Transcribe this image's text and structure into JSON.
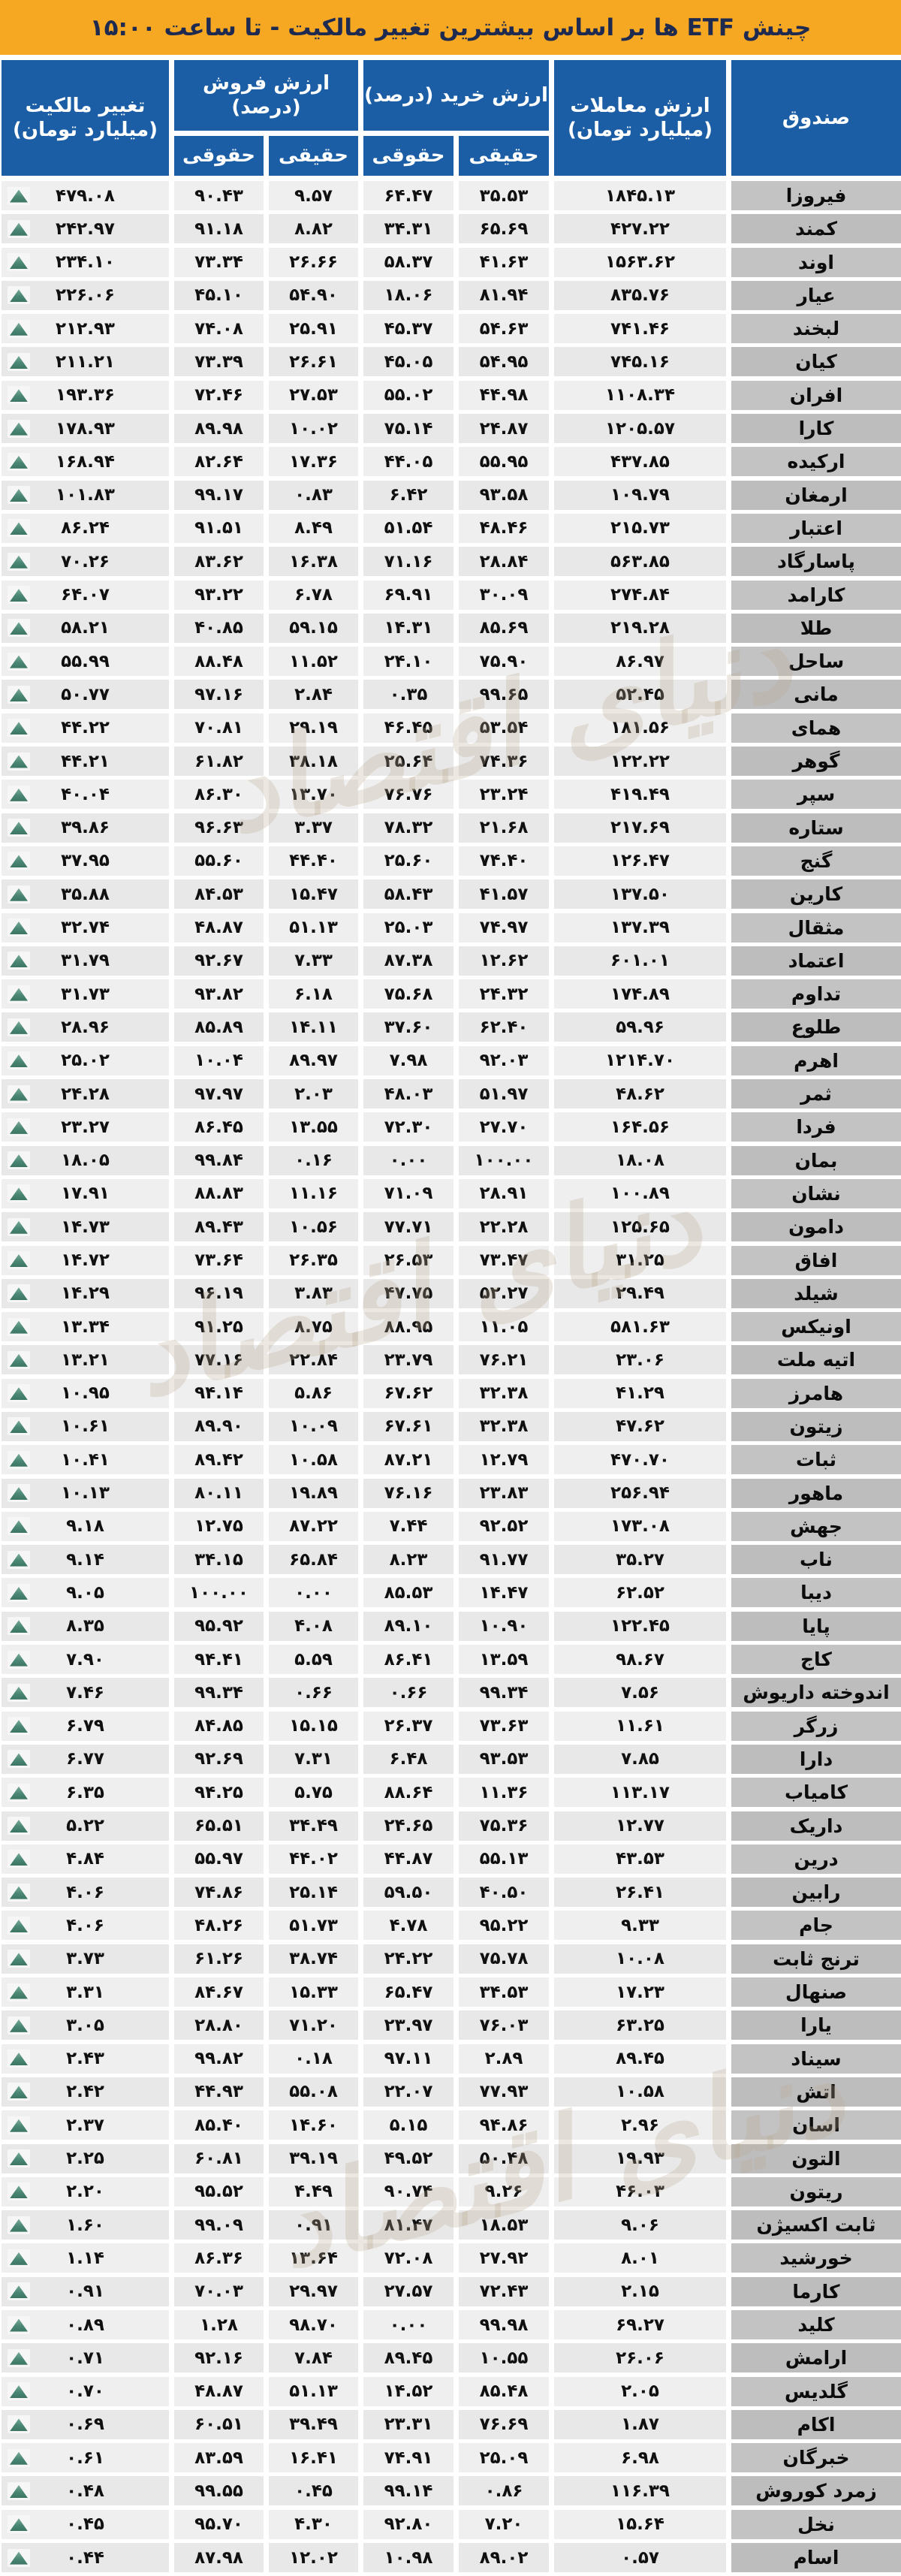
{
  "header": {
    "title": "چینش ETF ها بر اساس بیشترین تغییر مالکیت - تا ساعت ۱۵:۰۰"
  },
  "colors": {
    "title_bar": "#F7A823",
    "header_blue": "#1B5EA6",
    "fund_cell_gray": "#C3C3C3",
    "num_cell_gray": "#EFEFEF",
    "up_triangle_green": "#4A8674"
  },
  "watermark": {
    "text": "دنیای اقتصاد"
  },
  "columns": {
    "fund": "صندوق",
    "trades_line1": "ارزش معاملات",
    "trades_line2": "(میلیارد تومان)",
    "buy_group": "ارزش خرید (درصد)",
    "sell_group_line1": "ارزش فروش",
    "sell_group_line2": "(درصد)",
    "change_line1": "تغییر مالکیت",
    "change_line2": "(میلیارد تومان)",
    "real": "حقیقی",
    "legal": "حقوقی"
  },
  "rows": [
    {
      "name": "فیروزا",
      "trades": "۱۸۴۵.۱۳",
      "buy_real": "۳۵.۵۳",
      "buy_legal": "۶۴.۴۷",
      "sell_real": "۹.۵۷",
      "sell_legal": "۹۰.۴۳",
      "change": "۴۷۹.۰۸"
    },
    {
      "name": "کمند",
      "trades": "۴۲۷.۲۲",
      "buy_real": "۶۵.۶۹",
      "buy_legal": "۳۴.۳۱",
      "sell_real": "۸.۸۲",
      "sell_legal": "۹۱.۱۸",
      "change": "۲۴۲.۹۷"
    },
    {
      "name": "اوند",
      "trades": "۱۵۶۳.۶۲",
      "buy_real": "۴۱.۶۳",
      "buy_legal": "۵۸.۳۷",
      "sell_real": "۲۶.۶۶",
      "sell_legal": "۷۳.۳۴",
      "change": "۲۳۴.۱۰"
    },
    {
      "name": "عیار",
      "trades": "۸۳۵.۷۶",
      "buy_real": "۸۱.۹۴",
      "buy_legal": "۱۸.۰۶",
      "sell_real": "۵۴.۹۰",
      "sell_legal": "۴۵.۱۰",
      "change": "۲۲۶.۰۶"
    },
    {
      "name": "لبخند",
      "trades": "۷۴۱.۴۶",
      "buy_real": "۵۴.۶۳",
      "buy_legal": "۴۵.۳۷",
      "sell_real": "۲۵.۹۱",
      "sell_legal": "۷۴.۰۸",
      "change": "۲۱۲.۹۳"
    },
    {
      "name": "کیان",
      "trades": "۷۴۵.۱۶",
      "buy_real": "۵۴.۹۵",
      "buy_legal": "۴۵.۰۵",
      "sell_real": "۲۶.۶۱",
      "sell_legal": "۷۳.۳۹",
      "change": "۲۱۱.۲۱"
    },
    {
      "name": "افران",
      "trades": "۱۱۰۸.۳۴",
      "buy_real": "۴۴.۹۸",
      "buy_legal": "۵۵.۰۲",
      "sell_real": "۲۷.۵۳",
      "sell_legal": "۷۲.۴۶",
      "change": "۱۹۳.۳۶"
    },
    {
      "name": "کارا",
      "trades": "۱۲۰۵.۵۷",
      "buy_real": "۲۴.۸۷",
      "buy_legal": "۷۵.۱۴",
      "sell_real": "۱۰.۰۲",
      "sell_legal": "۸۹.۹۸",
      "change": "۱۷۸.۹۳"
    },
    {
      "name": "ارکیده",
      "trades": "۴۳۷.۸۵",
      "buy_real": "۵۵.۹۵",
      "buy_legal": "۴۴.۰۵",
      "sell_real": "۱۷.۳۶",
      "sell_legal": "۸۲.۶۴",
      "change": "۱۶۸.۹۴"
    },
    {
      "name": "ارمغان",
      "trades": "۱۰۹.۷۹",
      "buy_real": "۹۳.۵۸",
      "buy_legal": "۶.۴۲",
      "sell_real": "۰.۸۳",
      "sell_legal": "۹۹.۱۷",
      "change": "۱۰۱.۸۳"
    },
    {
      "name": "اعتبار",
      "trades": "۲۱۵.۷۳",
      "buy_real": "۴۸.۴۶",
      "buy_legal": "۵۱.۵۴",
      "sell_real": "۸.۴۹",
      "sell_legal": "۹۱.۵۱",
      "change": "۸۶.۲۴"
    },
    {
      "name": "پاسارگاد",
      "trades": "۵۶۳.۸۵",
      "buy_real": "۲۸.۸۴",
      "buy_legal": "۷۱.۱۶",
      "sell_real": "۱۶.۳۸",
      "sell_legal": "۸۳.۶۲",
      "change": "۷۰.۲۶"
    },
    {
      "name": "کارامد",
      "trades": "۲۷۴.۸۴",
      "buy_real": "۳۰.۰۹",
      "buy_legal": "۶۹.۹۱",
      "sell_real": "۶.۷۸",
      "sell_legal": "۹۳.۲۲",
      "change": "۶۴.۰۷"
    },
    {
      "name": "طلا",
      "trades": "۲۱۹.۲۸",
      "buy_real": "۸۵.۶۹",
      "buy_legal": "۱۴.۳۱",
      "sell_real": "۵۹.۱۵",
      "sell_legal": "۴۰.۸۵",
      "change": "۵۸.۲۱"
    },
    {
      "name": "ساحل",
      "trades": "۸۶.۹۷",
      "buy_real": "۷۵.۹۰",
      "buy_legal": "۲۴.۱۰",
      "sell_real": "۱۱.۵۲",
      "sell_legal": "۸۸.۴۸",
      "change": "۵۵.۹۹"
    },
    {
      "name": "مانی",
      "trades": "۵۲.۴۵",
      "buy_real": "۹۹.۶۵",
      "buy_legal": "۰.۳۵",
      "sell_real": "۲.۸۴",
      "sell_legal": "۹۷.۱۶",
      "change": "۵۰.۷۷"
    },
    {
      "name": "همای",
      "trades": "۱۸۱.۵۶",
      "buy_real": "۵۳.۵۴",
      "buy_legal": "۴۶.۴۵",
      "sell_real": "۲۹.۱۹",
      "sell_legal": "۷۰.۸۱",
      "change": "۴۴.۲۲"
    },
    {
      "name": "گوهر",
      "trades": "۱۲۲.۲۲",
      "buy_real": "۷۴.۳۶",
      "buy_legal": "۲۵.۶۴",
      "sell_real": "۳۸.۱۸",
      "sell_legal": "۶۱.۸۲",
      "change": "۴۴.۲۱"
    },
    {
      "name": "سپر",
      "trades": "۴۱۹.۴۹",
      "buy_real": "۲۳.۲۴",
      "buy_legal": "۷۶.۷۶",
      "sell_real": "۱۳.۷۰",
      "sell_legal": "۸۶.۳۰",
      "change": "۴۰.۰۴"
    },
    {
      "name": "ستاره",
      "trades": "۲۱۷.۶۹",
      "buy_real": "۲۱.۶۸",
      "buy_legal": "۷۸.۳۲",
      "sell_real": "۳.۳۷",
      "sell_legal": "۹۶.۶۳",
      "change": "۳۹.۸۶"
    },
    {
      "name": "گنج",
      "trades": "۱۲۶.۴۷",
      "buy_real": "۷۴.۴۰",
      "buy_legal": "۲۵.۶۰",
      "sell_real": "۴۴.۴۰",
      "sell_legal": "۵۵.۶۰",
      "change": "۳۷.۹۵"
    },
    {
      "name": "کارین",
      "trades": "۱۳۷.۵۰",
      "buy_real": "۴۱.۵۷",
      "buy_legal": "۵۸.۴۳",
      "sell_real": "۱۵.۴۷",
      "sell_legal": "۸۴.۵۳",
      "change": "۳۵.۸۸"
    },
    {
      "name": "مثقال",
      "trades": "۱۳۷.۳۹",
      "buy_real": "۷۴.۹۷",
      "buy_legal": "۲۵.۰۳",
      "sell_real": "۵۱.۱۳",
      "sell_legal": "۴۸.۸۷",
      "change": "۳۲.۷۴"
    },
    {
      "name": "اعتماد",
      "trades": "۶۰۱.۰۱",
      "buy_real": "۱۲.۶۲",
      "buy_legal": "۸۷.۳۸",
      "sell_real": "۷.۳۳",
      "sell_legal": "۹۲.۶۷",
      "change": "۳۱.۷۹"
    },
    {
      "name": "تداوم",
      "trades": "۱۷۴.۸۹",
      "buy_real": "۲۴.۳۲",
      "buy_legal": "۷۵.۶۸",
      "sell_real": "۶.۱۸",
      "sell_legal": "۹۳.۸۲",
      "change": "۳۱.۷۳"
    },
    {
      "name": "طلوع",
      "trades": "۵۹.۹۶",
      "buy_real": "۶۲.۴۰",
      "buy_legal": "۳۷.۶۰",
      "sell_real": "۱۴.۱۱",
      "sell_legal": "۸۵.۸۹",
      "change": "۲۸.۹۶"
    },
    {
      "name": "اهرم",
      "trades": "۱۲۱۴.۷۰",
      "buy_real": "۹۲.۰۳",
      "buy_legal": "۷.۹۸",
      "sell_real": "۸۹.۹۷",
      "sell_legal": "۱۰.۰۴",
      "change": "۲۵.۰۲"
    },
    {
      "name": "ثمر",
      "trades": "۴۸.۶۲",
      "buy_real": "۵۱.۹۷",
      "buy_legal": "۴۸.۰۳",
      "sell_real": "۲.۰۳",
      "sell_legal": "۹۷.۹۷",
      "change": "۲۴.۲۸"
    },
    {
      "name": "فردا",
      "trades": "۱۶۴.۵۶",
      "buy_real": "۲۷.۷۰",
      "buy_legal": "۷۲.۳۰",
      "sell_real": "۱۳.۵۵",
      "sell_legal": "۸۶.۴۵",
      "change": "۲۳.۲۷"
    },
    {
      "name": "بمان",
      "trades": "۱۸.۰۸",
      "buy_real": "۱۰۰.۰۰",
      "buy_legal": "۰.۰۰",
      "sell_real": "۰.۱۶",
      "sell_legal": "۹۹.۸۴",
      "change": "۱۸.۰۵"
    },
    {
      "name": "نشان",
      "trades": "۱۰۰.۸۹",
      "buy_real": "۲۸.۹۱",
      "buy_legal": "۷۱.۰۹",
      "sell_real": "۱۱.۱۶",
      "sell_legal": "۸۸.۸۳",
      "change": "۱۷.۹۱"
    },
    {
      "name": "دامون",
      "trades": "۱۲۵.۶۵",
      "buy_real": "۲۲.۲۸",
      "buy_legal": "۷۷.۷۱",
      "sell_real": "۱۰.۵۶",
      "sell_legal": "۸۹.۴۳",
      "change": "۱۴.۷۳"
    },
    {
      "name": "افاق",
      "trades": "۳۱.۲۵",
      "buy_real": "۷۳.۴۷",
      "buy_legal": "۲۶.۵۳",
      "sell_real": "۲۶.۳۵",
      "sell_legal": "۷۳.۶۴",
      "change": "۱۴.۷۲"
    },
    {
      "name": "شیلد",
      "trades": "۲۹.۴۹",
      "buy_real": "۵۲.۲۷",
      "buy_legal": "۴۷.۷۵",
      "sell_real": "۳.۸۳",
      "sell_legal": "۹۶.۱۹",
      "change": "۱۴.۲۹"
    },
    {
      "name": "اونیکس",
      "trades": "۵۸۱.۶۳",
      "buy_real": "۱۱.۰۵",
      "buy_legal": "۸۸.۹۵",
      "sell_real": "۸.۷۵",
      "sell_legal": "۹۱.۲۵",
      "change": "۱۳.۳۴"
    },
    {
      "name": "اتیه ملت",
      "trades": "۲۳.۰۶",
      "buy_real": "۷۶.۲۱",
      "buy_legal": "۲۳.۷۹",
      "sell_real": "۲۲.۸۴",
      "sell_legal": "۷۷.۱۶",
      "change": "۱۳.۲۱"
    },
    {
      "name": "هامرز",
      "trades": "۴۱.۲۹",
      "buy_real": "۳۲.۳۸",
      "buy_legal": "۶۷.۶۲",
      "sell_real": "۵.۸۶",
      "sell_legal": "۹۴.۱۴",
      "change": "۱۰.۹۵"
    },
    {
      "name": "زیتون",
      "trades": "۴۷.۶۲",
      "buy_real": "۳۲.۳۸",
      "buy_legal": "۶۷.۶۱",
      "sell_real": "۱۰.۰۹",
      "sell_legal": "۸۹.۹۰",
      "change": "۱۰.۶۱"
    },
    {
      "name": "ثبات",
      "trades": "۴۷۰.۷۰",
      "buy_real": "۱۲.۷۹",
      "buy_legal": "۸۷.۲۱",
      "sell_real": "۱۰.۵۸",
      "sell_legal": "۸۹.۴۲",
      "change": "۱۰.۴۱"
    },
    {
      "name": "ماهور",
      "trades": "۲۵۶.۹۴",
      "buy_real": "۲۳.۸۳",
      "buy_legal": "۷۶.۱۶",
      "sell_real": "۱۹.۸۹",
      "sell_legal": "۸۰.۱۱",
      "change": "۱۰.۱۳"
    },
    {
      "name": "جهش",
      "trades": "۱۷۳.۰۸",
      "buy_real": "۹۲.۵۲",
      "buy_legal": "۷.۴۴",
      "sell_real": "۸۷.۲۲",
      "sell_legal": "۱۲.۷۵",
      "change": "۹.۱۸"
    },
    {
      "name": "ناب",
      "trades": "۳۵.۲۷",
      "buy_real": "۹۱.۷۷",
      "buy_legal": "۸.۲۳",
      "sell_real": "۶۵.۸۴",
      "sell_legal": "۳۴.۱۵",
      "change": "۹.۱۴"
    },
    {
      "name": "دیبا",
      "trades": "۶۲.۵۲",
      "buy_real": "۱۴.۴۷",
      "buy_legal": "۸۵.۵۳",
      "sell_real": "۰.۰۰",
      "sell_legal": "۱۰۰.۰۰",
      "change": "۹.۰۵"
    },
    {
      "name": "پایا",
      "trades": "۱۲۲.۴۵",
      "buy_real": "۱۰.۹۰",
      "buy_legal": "۸۹.۱۰",
      "sell_real": "۴.۰۸",
      "sell_legal": "۹۵.۹۲",
      "change": "۸.۳۵"
    },
    {
      "name": "کاج",
      "trades": "۹۸.۶۷",
      "buy_real": "۱۳.۵۹",
      "buy_legal": "۸۶.۴۱",
      "sell_real": "۵.۵۹",
      "sell_legal": "۹۴.۴۱",
      "change": "۷.۹۰"
    },
    {
      "name": "اندوخته داریوش",
      "trades": "۷.۵۶",
      "buy_real": "۹۹.۳۴",
      "buy_legal": "۰.۶۶",
      "sell_real": "۰.۶۶",
      "sell_legal": "۹۹.۳۴",
      "change": "۷.۴۶"
    },
    {
      "name": "زرگر",
      "trades": "۱۱.۶۱",
      "buy_real": "۷۳.۶۳",
      "buy_legal": "۲۶.۳۷",
      "sell_real": "۱۵.۱۵",
      "sell_legal": "۸۴.۸۵",
      "change": "۶.۷۹"
    },
    {
      "name": "دارا",
      "trades": "۷.۸۵",
      "buy_real": "۹۳.۵۳",
      "buy_legal": "۶.۴۸",
      "sell_real": "۷.۳۱",
      "sell_legal": "۹۲.۶۹",
      "change": "۶.۷۷"
    },
    {
      "name": "کامیاب",
      "trades": "۱۱۳.۱۷",
      "buy_real": "۱۱.۳۶",
      "buy_legal": "۸۸.۶۴",
      "sell_real": "۵.۷۵",
      "sell_legal": "۹۴.۲۵",
      "change": "۶.۳۵"
    },
    {
      "name": "داریک",
      "trades": "۱۲.۷۷",
      "buy_real": "۷۵.۳۶",
      "buy_legal": "۲۴.۶۵",
      "sell_real": "۳۴.۴۹",
      "sell_legal": "۶۵.۵۱",
      "change": "۵.۲۲"
    },
    {
      "name": "درین",
      "trades": "۴۳.۵۳",
      "buy_real": "۵۵.۱۳",
      "buy_legal": "۴۴.۸۷",
      "sell_real": "۴۴.۰۲",
      "sell_legal": "۵۵.۹۷",
      "change": "۴.۸۴"
    },
    {
      "name": "رابین",
      "trades": "۲۶.۴۱",
      "buy_real": "۴۰.۵۰",
      "buy_legal": "۵۹.۵۰",
      "sell_real": "۲۵.۱۴",
      "sell_legal": "۷۴.۸۶",
      "change": "۴.۰۶"
    },
    {
      "name": "جام",
      "trades": "۹.۳۳",
      "buy_real": "۹۵.۲۲",
      "buy_legal": "۴.۷۸",
      "sell_real": "۵۱.۷۳",
      "sell_legal": "۴۸.۲۶",
      "change": "۴.۰۶"
    },
    {
      "name": "ترنج ثابت",
      "trades": "۱۰.۰۸",
      "buy_real": "۷۵.۷۸",
      "buy_legal": "۲۴.۲۲",
      "sell_real": "۳۸.۷۴",
      "sell_legal": "۶۱.۲۶",
      "change": "۳.۷۳"
    },
    {
      "name": "صنهال",
      "trades": "۱۷.۲۳",
      "buy_real": "۳۴.۵۳",
      "buy_legal": "۶۵.۴۷",
      "sell_real": "۱۵.۳۳",
      "sell_legal": "۸۴.۶۷",
      "change": "۳.۳۱"
    },
    {
      "name": "یارا",
      "trades": "۶۳.۲۵",
      "buy_real": "۷۶.۰۳",
      "buy_legal": "۲۳.۹۷",
      "sell_real": "۷۱.۲۰",
      "sell_legal": "۲۸.۸۰",
      "change": "۳.۰۵"
    },
    {
      "name": "سیناد",
      "trades": "۸۹.۴۵",
      "buy_real": "۲.۸۹",
      "buy_legal": "۹۷.۱۱",
      "sell_real": "۰.۱۸",
      "sell_legal": "۹۹.۸۲",
      "change": "۲.۴۳"
    },
    {
      "name": "اتش",
      "trades": "۱۰.۵۸",
      "buy_real": "۷۷.۹۳",
      "buy_legal": "۲۲.۰۷",
      "sell_real": "۵۵.۰۸",
      "sell_legal": "۴۴.۹۳",
      "change": "۲.۴۲"
    },
    {
      "name": "اسان",
      "trades": "۲.۹۶",
      "buy_real": "۹۴.۸۶",
      "buy_legal": "۵.۱۵",
      "sell_real": "۱۴.۶۰",
      "sell_legal": "۸۵.۴۰",
      "change": "۲.۳۷"
    },
    {
      "name": "التون",
      "trades": "۱۹.۹۳",
      "buy_real": "۵۰.۴۸",
      "buy_legal": "۴۹.۵۲",
      "sell_real": "۳۹.۱۹",
      "sell_legal": "۶۰.۸۱",
      "change": "۲.۲۵"
    },
    {
      "name": "ریتون",
      "trades": "۴۶.۰۳",
      "buy_real": "۹.۲۶",
      "buy_legal": "۹۰.۷۴",
      "sell_real": "۴.۴۹",
      "sell_legal": "۹۵.۵۲",
      "change": "۲.۲۰"
    },
    {
      "name": "ثابت اکسیژن",
      "trades": "۹.۰۶",
      "buy_real": "۱۸.۵۳",
      "buy_legal": "۸۱.۴۷",
      "sell_real": "۰.۹۱",
      "sell_legal": "۹۹.۰۹",
      "change": "۱.۶۰"
    },
    {
      "name": "خورشید",
      "trades": "۸.۰۱",
      "buy_real": "۲۷.۹۲",
      "buy_legal": "۷۲.۰۸",
      "sell_real": "۱۳.۶۴",
      "sell_legal": "۸۶.۳۶",
      "change": "۱.۱۴"
    },
    {
      "name": "کارما",
      "trades": "۲.۱۵",
      "buy_real": "۷۲.۴۳",
      "buy_legal": "۲۷.۵۷",
      "sell_real": "۲۹.۹۷",
      "sell_legal": "۷۰.۰۳",
      "change": "۰.۹۱"
    },
    {
      "name": "کلید",
      "trades": "۶۹.۲۷",
      "buy_real": "۹۹.۹۸",
      "buy_legal": "۰.۰۰",
      "sell_real": "۹۸.۷۰",
      "sell_legal": "۱.۲۸",
      "change": "۰.۸۹"
    },
    {
      "name": "ارامش",
      "trades": "۲۶.۰۶",
      "buy_real": "۱۰.۵۵",
      "buy_legal": "۸۹.۴۵",
      "sell_real": "۷.۸۴",
      "sell_legal": "۹۲.۱۶",
      "change": "۰.۷۱"
    },
    {
      "name": "گلدیس",
      "trades": "۲.۰۵",
      "buy_real": "۸۵.۴۸",
      "buy_legal": "۱۴.۵۲",
      "sell_real": "۵۱.۱۳",
      "sell_legal": "۴۸.۸۷",
      "change": "۰.۷۰"
    },
    {
      "name": "اکام",
      "trades": "۱.۸۷",
      "buy_real": "۷۶.۶۹",
      "buy_legal": "۲۳.۳۱",
      "sell_real": "۳۹.۴۹",
      "sell_legal": "۶۰.۵۱",
      "change": "۰.۶۹"
    },
    {
      "name": "خبرگان",
      "trades": "۶.۹۸",
      "buy_real": "۲۵.۰۹",
      "buy_legal": "۷۴.۹۱",
      "sell_real": "۱۶.۴۱",
      "sell_legal": "۸۳.۵۹",
      "change": "۰.۶۱"
    },
    {
      "name": "زمرد کوروش",
      "trades": "۱۱۶.۳۹",
      "buy_real": "۰.۸۶",
      "buy_legal": "۹۹.۱۴",
      "sell_real": "۰.۴۵",
      "sell_legal": "۹۹.۵۵",
      "change": "۰.۴۸"
    },
    {
      "name": "نخل",
      "trades": "۱۵.۶۴",
      "buy_real": "۷.۲۰",
      "buy_legal": "۹۲.۸۰",
      "sell_real": "۴.۳۰",
      "sell_legal": "۹۵.۷۰",
      "change": "۰.۴۵"
    },
    {
      "name": "اسام",
      "trades": "۰.۵۷",
      "buy_real": "۸۹.۰۲",
      "buy_legal": "۱۰.۹۸",
      "sell_real": "۱۲.۰۲",
      "sell_legal": "۸۷.۹۸",
      "change": "۰.۴۴"
    }
  ]
}
